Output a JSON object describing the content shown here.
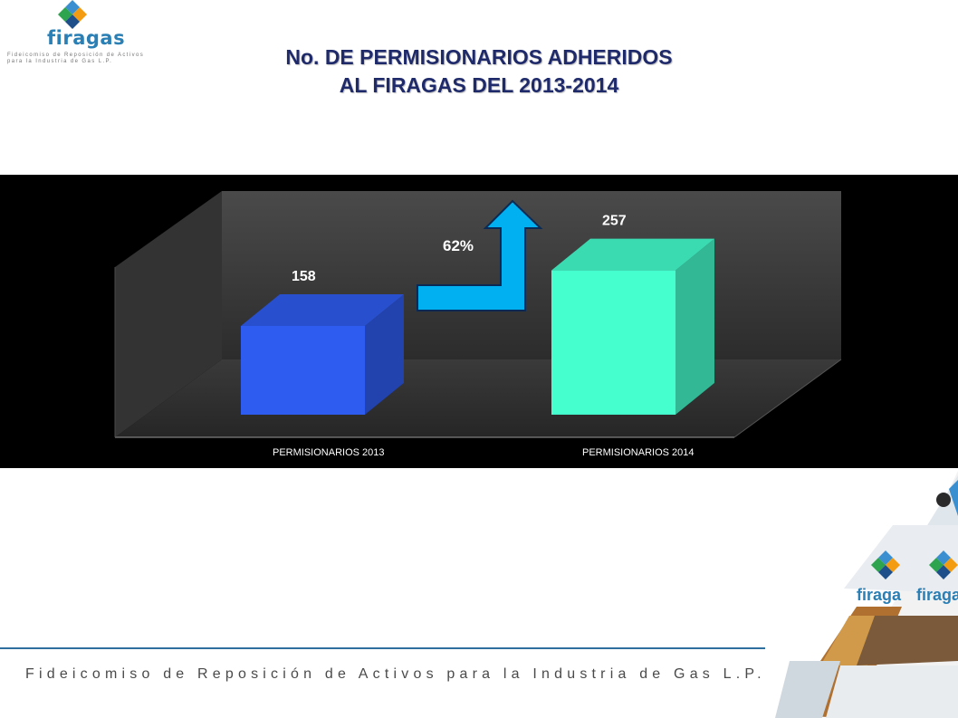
{
  "header": {
    "logo_text": "firagas",
    "logo_tagline_1": "Fideicomiso de Reposición de Activos",
    "logo_tagline_2": "para la Industria de Gas L.P.",
    "title_line1": "No. DE PERMISIONARIOS ADHERIDOS",
    "title_line2": "AL FIRAGAS DEL 2013-2014"
  },
  "chart_data": {
    "type": "bar",
    "categories": [
      "PERMISIONARIOS 2013",
      "PERMISIONARIOS 2014"
    ],
    "values": [
      158,
      257
    ],
    "data_labels": [
      "158",
      "257"
    ],
    "ylim": [
      0,
      300
    ],
    "annotation": "62%",
    "bar_colors": [
      "#2f5cf0",
      "#45ffcf"
    ],
    "arrow_color": "#00b0f0",
    "grid": false
  },
  "footer": {
    "text": "Fideicomiso de Reposición de Activos para la Industria de Gas L.P."
  },
  "decoration": {
    "brand_word_1": "firaga",
    "brand_word_2": "firaga"
  },
  "colors": {
    "title": "#1f2a6b",
    "brand_blue": "#2a7fb5",
    "footer_line": "#2f6f9f"
  }
}
